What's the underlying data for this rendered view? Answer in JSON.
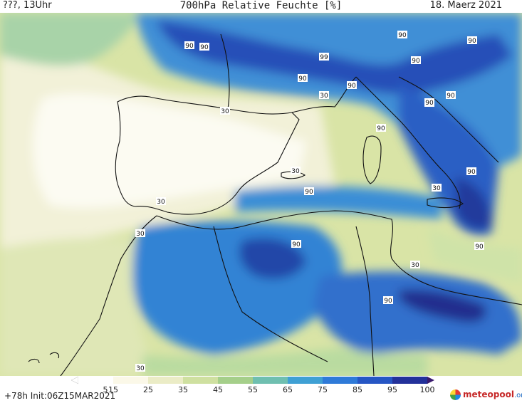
{
  "header": {
    "left": "???, 13Uhr",
    "title": "700hPa Relative Feuchte [%]",
    "date": "18. Maerz 2021"
  },
  "footer": {
    "run": "+78h Init:06Z15MAR2021",
    "logo_main": "meteopool",
    "logo_suffix": ".org"
  },
  "colorbar": {
    "ticks": [
      "5",
      "15",
      "25",
      "35",
      "45",
      "55",
      "65",
      "75",
      "85",
      "95",
      "100"
    ],
    "colors": [
      "#ffffff",
      "#fbf8e8",
      "#ebecc6",
      "#cfe0a0",
      "#a5cf8a",
      "#6fbfb0",
      "#3fa0d4",
      "#2f7ad8",
      "#2656c4",
      "#23319a",
      "#3a1a6e"
    ]
  },
  "contour_labels": [
    "90",
    "90",
    "90",
    "90",
    "99",
    "90",
    "90",
    "30",
    "90",
    "90",
    "30",
    "90",
    "90",
    "90",
    "90",
    "30",
    "90",
    "30",
    "30",
    "30",
    "90",
    "30",
    "90",
    "90",
    "30"
  ],
  "colors": {
    "dry": "#f7f6e6",
    "moist": "#2f7ad8",
    "very_moist": "#23319a"
  }
}
